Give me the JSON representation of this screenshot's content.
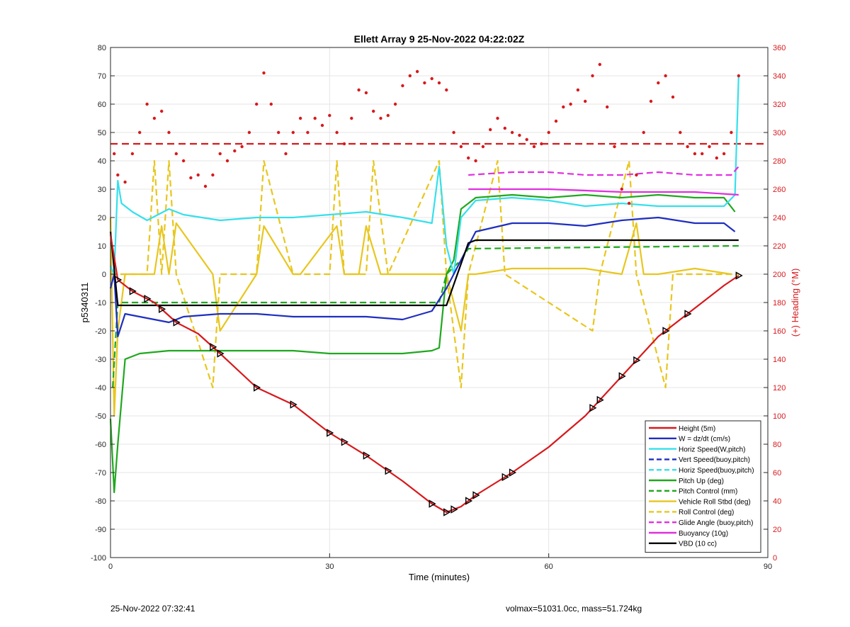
{
  "chart_data": {
    "type": "line",
    "title": "Ellett Array 9 25-Nov-2022 04:22:02Z",
    "xlabel": "Time (minutes)",
    "ylabel": "p5340311",
    "y2label": "(+) Heading (°M)",
    "xlim": [
      0,
      90
    ],
    "ylim": [
      -100,
      80
    ],
    "y2lim": [
      0,
      360
    ],
    "xticks": [
      0,
      30,
      60,
      90
    ],
    "yticks": [
      -100,
      -90,
      -80,
      -70,
      -60,
      -50,
      -40,
      -30,
      -20,
      -10,
      0,
      10,
      20,
      30,
      40,
      50,
      60,
      70,
      80
    ],
    "y2ticks": [
      0,
      20,
      40,
      60,
      80,
      100,
      120,
      140,
      160,
      180,
      200,
      220,
      240,
      260,
      280,
      300,
      320,
      340,
      360
    ],
    "grid": true,
    "legend_position": "bottom-right",
    "colors": {
      "height": "#d7191c",
      "w": "#1f2fbf",
      "horiz": "#35e0ec",
      "pitch": "#1fa81f",
      "roll": "#e8c61e",
      "glide": "#e030e0",
      "buoy": "#e030e0",
      "vbd": "#000000",
      "heading": "#d7191c",
      "rightaxis": "#d7191c"
    },
    "series": [
      {
        "name": "Height (5m)",
        "style": "solid",
        "color": "#d7191c",
        "x": [
          0,
          1,
          3,
          6,
          9,
          12,
          15,
          20,
          25,
          30,
          35,
          40,
          44,
          46,
          48,
          50,
          55,
          60,
          65,
          70,
          75,
          80,
          84,
          86
        ],
        "y": [
          14,
          -2,
          -6,
          -10,
          -17,
          -21,
          -28,
          -40,
          -46,
          -56,
          -64,
          -73,
          -81,
          -84,
          -82,
          -78,
          -70,
          -61,
          -50,
          -36,
          -22,
          -12,
          -4,
          -0.5
        ]
      },
      {
        "name": "W = dz/dt (cm/s)",
        "style": "solid",
        "color": "#1f2fbf",
        "x": [
          0,
          0.5,
          1,
          2,
          4,
          6,
          8,
          10,
          15,
          20,
          25,
          30,
          35,
          40,
          44,
          46,
          47,
          48,
          50,
          55,
          60,
          65,
          70,
          75,
          80,
          84,
          85.5
        ],
        "y": [
          -5,
          0,
          -22,
          -14,
          -15,
          -16,
          -17,
          -15,
          -14,
          -14,
          -15,
          -15,
          -15,
          -16,
          -13,
          -5,
          0,
          5,
          15,
          18,
          18,
          17,
          19,
          20,
          18,
          18,
          15
        ]
      },
      {
        "name": "Horiz Speed(W,pitch)",
        "style": "solid",
        "color": "#35e0ec",
        "x": [
          0,
          0.5,
          1,
          1.5,
          3,
          5,
          8,
          10,
          15,
          20,
          25,
          30,
          35,
          40,
          44,
          45,
          46,
          47,
          48,
          50,
          55,
          60,
          65,
          70,
          75,
          80,
          84,
          85.5,
          86
        ],
        "y": [
          3,
          0,
          33,
          25,
          22,
          19,
          23,
          21,
          19,
          20,
          20,
          21,
          22,
          20,
          18,
          38,
          10,
          0,
          20,
          26,
          27,
          26,
          24,
          25,
          24,
          24,
          24,
          28,
          70
        ]
      },
      {
        "name": "Vert Speed(buoy,pitch)",
        "style": "dashed",
        "color": "#1f2fbf",
        "x": [],
        "y": []
      },
      {
        "name": "Horiz Speed(buoy,pitch)",
        "style": "dashed",
        "color": "#35e0ec",
        "x": [],
        "y": []
      },
      {
        "name": "Pitch Up (deg)",
        "style": "solid",
        "color": "#1fa81f",
        "x": [
          0,
          0.5,
          1,
          2,
          4,
          8,
          10,
          15,
          20,
          25,
          30,
          35,
          40,
          44,
          45,
          46,
          47,
          48,
          50,
          55,
          60,
          65,
          70,
          75,
          80,
          84,
          85.5
        ],
        "y": [
          -51,
          -77,
          -60,
          -30,
          -28,
          -27,
          -27,
          -27,
          -27,
          -27,
          -28,
          -28,
          -28,
          -27,
          -26,
          0,
          5,
          23,
          27,
          28,
          27,
          28,
          27,
          28,
          27,
          27,
          22
        ]
      },
      {
        "name": "Pitch Control (mm)",
        "style": "dashed",
        "color": "#1fa81f",
        "x": [
          0.3,
          1,
          2,
          5,
          45,
          46,
          48,
          49,
          86
        ],
        "y": [
          -40,
          -10,
          -10,
          -10,
          -10,
          0,
          5,
          9,
          10
        ]
      },
      {
        "name": "Vehicle Roll Stbd (deg)",
        "style": "solid",
        "color": "#e8c61e",
        "x": [
          0,
          0.5,
          1,
          2,
          6,
          7,
          8,
          9,
          14,
          15,
          20,
          21,
          25,
          26,
          31,
          32,
          34,
          35,
          37,
          38,
          45,
          46,
          48,
          49,
          50,
          55,
          60,
          65,
          70,
          72,
          73,
          75,
          80,
          85
        ],
        "y": [
          20,
          -50,
          -20,
          0,
          0,
          17,
          0,
          18,
          0,
          -20,
          0,
          17,
          0,
          0,
          17,
          0,
          0,
          17,
          0,
          0,
          0,
          0,
          -20,
          0,
          0,
          2,
          2,
          2,
          0,
          18,
          0,
          0,
          2,
          0
        ]
      },
      {
        "name": "Roll Control (deg)",
        "style": "dashed",
        "color": "#e8c61e",
        "x": [
          0,
          2,
          5,
          6,
          7,
          8,
          9,
          14,
          15,
          20,
          21,
          25,
          26,
          30,
          31,
          32,
          35,
          36,
          38,
          45,
          46,
          48,
          49,
          53,
          54,
          66,
          67,
          71,
          72,
          76,
          77,
          86
        ],
        "y": [
          0,
          0,
          0,
          40,
          0,
          40,
          0,
          -40,
          0,
          0,
          40,
          0,
          0,
          0,
          40,
          0,
          0,
          40,
          0,
          40,
          0,
          -40,
          0,
          40,
          0,
          -20,
          0,
          40,
          0,
          -40,
          0,
          0
        ]
      },
      {
        "name": "Glide Angle (buoy,pitch)",
        "style": "dashed",
        "color": "#e030e0",
        "x": [
          49,
          55,
          60,
          65,
          70,
          75,
          80,
          85,
          86
        ],
        "y": [
          35,
          36,
          36,
          35,
          35,
          36,
          35,
          35,
          38
        ]
      },
      {
        "name": "Buoyancy (10g)",
        "style": "solid",
        "color": "#e030e0",
        "x": [
          49,
          60,
          70,
          80,
          86
        ],
        "y": [
          30,
          30,
          29,
          29,
          28
        ]
      },
      {
        "name": "VBD (10 cc)",
        "style": "solid",
        "color": "#000000",
        "x": [
          0,
          1,
          5,
          45,
          46,
          49,
          50,
          86
        ],
        "y": [
          15,
          -11,
          -11,
          -11,
          -11,
          11,
          12,
          12
        ]
      }
    ],
    "heading_series": {
      "name": "(+) Heading (°M)",
      "axis": "right",
      "style": "dots",
      "color": "#d7191c",
      "x": [
        0.5,
        1,
        2,
        3,
        4,
        5,
        6,
        7,
        8,
        9,
        10,
        11,
        12,
        13,
        14,
        15,
        16,
        17,
        18,
        19,
        20,
        21,
        22,
        23,
        24,
        25,
        26,
        27,
        28,
        29,
        30,
        31,
        32,
        33,
        34,
        35,
        36,
        37,
        38,
        39,
        40,
        41,
        42,
        43,
        44,
        45,
        46,
        47,
        48,
        49,
        50,
        51,
        52,
        53,
        54,
        55,
        56,
        57,
        58,
        59,
        60,
        61,
        62,
        63,
        64,
        65,
        66,
        67,
        68,
        69,
        70,
        71,
        72,
        73,
        74,
        75,
        76,
        77,
        78,
        79,
        80,
        81,
        82,
        83,
        84,
        85,
        86
      ],
      "y": [
        285,
        270,
        265,
        285,
        300,
        320,
        310,
        315,
        300,
        285,
        280,
        268,
        270,
        262,
        270,
        285,
        280,
        287,
        290,
        300,
        320,
        342,
        320,
        300,
        285,
        300,
        310,
        300,
        310,
        305,
        312,
        300,
        292,
        310,
        330,
        328,
        315,
        310,
        312,
        320,
        333,
        340,
        343,
        335,
        338,
        335,
        330,
        300,
        290,
        282,
        280,
        290,
        302,
        310,
        303,
        300,
        298,
        295,
        290,
        292,
        300,
        308,
        318,
        320,
        330,
        322,
        340,
        348,
        318,
        290,
        260,
        250,
        270,
        300,
        322,
        335,
        340,
        325,
        300,
        290,
        285,
        285,
        290,
        282,
        285,
        300,
        340
      ],
      "reference_line": 292
    },
    "markers": {
      "style": "black triangles on Height line",
      "x": [
        1,
        3,
        5,
        7,
        9,
        14,
        15,
        20,
        25,
        30,
        32,
        35,
        38,
        44,
        46,
        47,
        49,
        50,
        54,
        55,
        66,
        67,
        70,
        72,
        76,
        79,
        86
      ]
    }
  },
  "footer": {
    "left": "25-Nov-2022 07:32:41",
    "right": "volmax=51031.0cc, mass=51.724kg"
  }
}
